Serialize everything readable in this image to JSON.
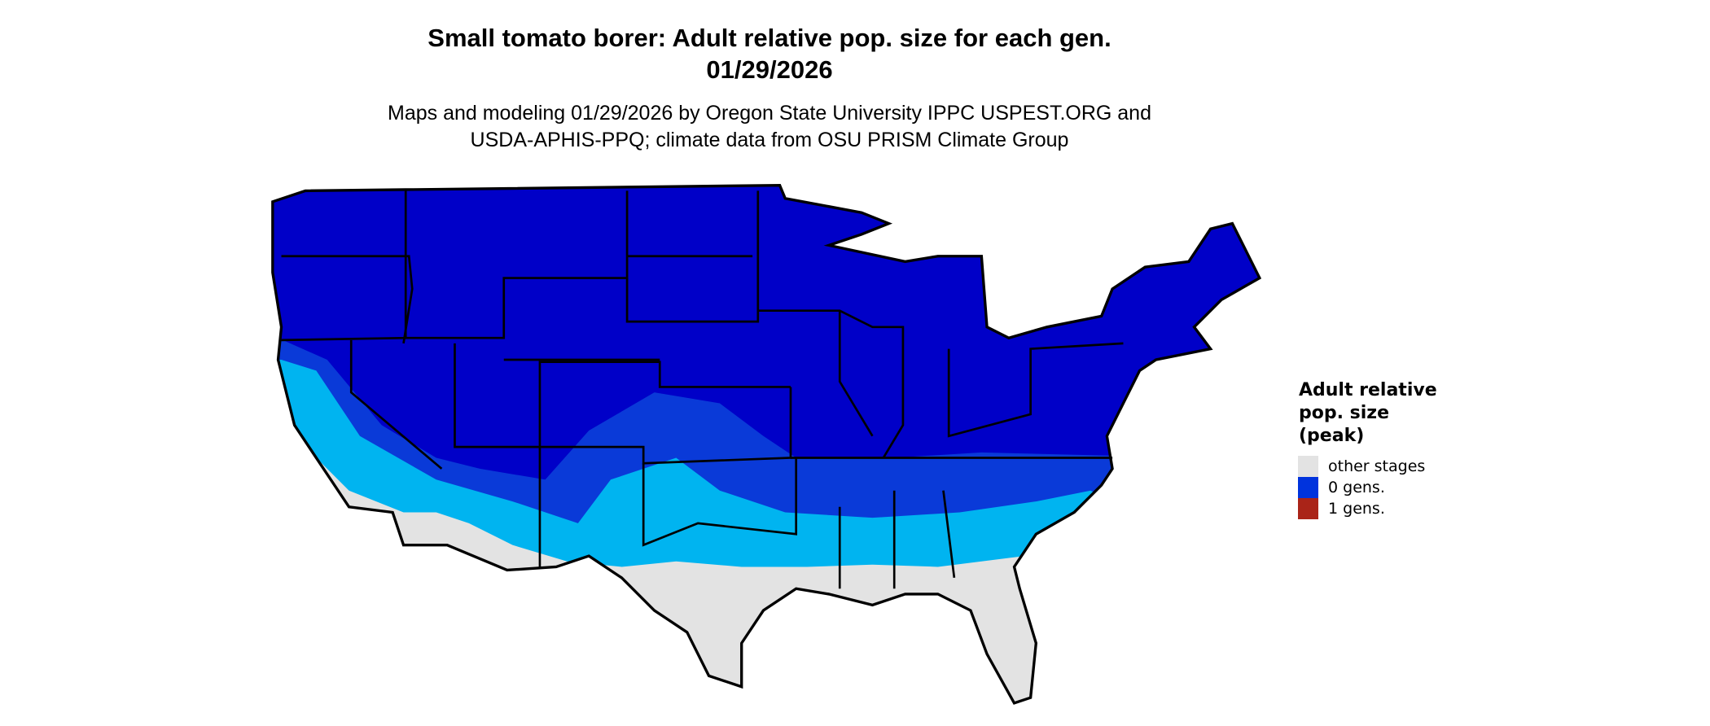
{
  "title": {
    "line1": "Small tomato borer: Adult relative pop. size for each gen.",
    "line2": "01/29/2026"
  },
  "subtitle": {
    "line1": "Maps and modeling 01/29/2026 by Oregon State University IPPC USPEST.ORG and",
    "line2": "USDA-APHIS-PPQ; climate data from OSU PRISM Climate Group"
  },
  "map": {
    "region": "Contiguous United States",
    "colors": {
      "dark_blue": "#0000c8",
      "medium_blue": "#0a3ad8",
      "light_blue": "#00b4f0",
      "grey": "#e3e3e3",
      "border": "#000000"
    }
  },
  "legend": {
    "title": "Adult relative\npop. size\n(peak)",
    "items": [
      {
        "label": "other stages",
        "color": "#e3e3e3"
      },
      {
        "label": "0 gens.",
        "color": "#0033dd"
      },
      {
        "label": "1 gens.",
        "color": "#aa2418"
      }
    ]
  }
}
